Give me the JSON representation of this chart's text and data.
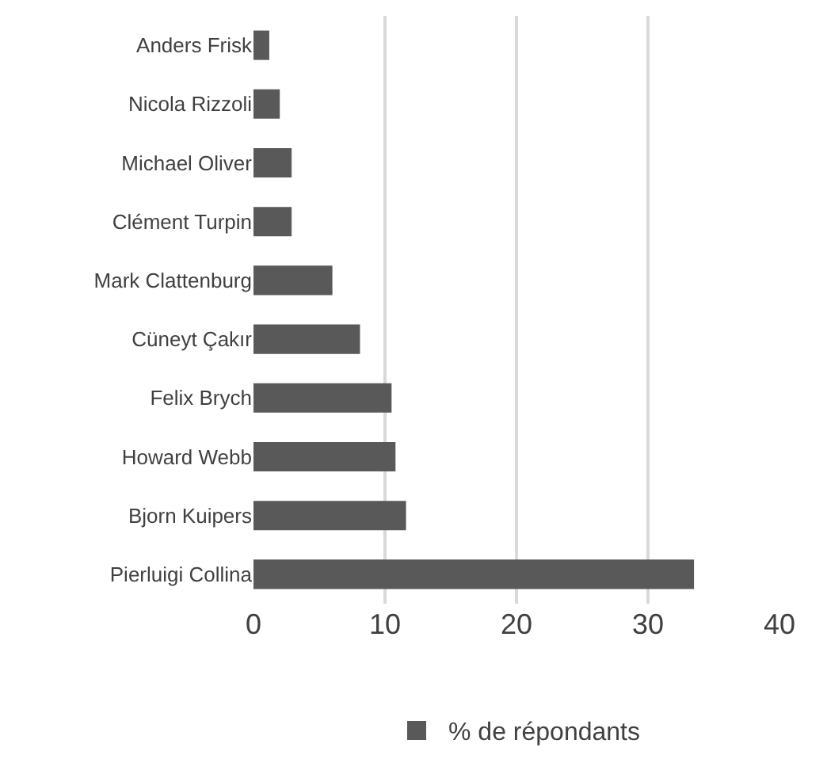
{
  "chart_data": {
    "type": "bar",
    "orientation": "horizontal",
    "categories": [
      "Anders Frisk",
      "Nicola Rizzoli",
      "Michael Oliver",
      "Clément Turpin",
      "Mark Clattenburg",
      "Cüneyt Çakır",
      "Felix Brych",
      "Howard Webb",
      "Bjorn Kuipers",
      "Pierluigi Collina"
    ],
    "series": [
      {
        "name": "% de répondants",
        "color": "#595959",
        "values": [
          1.2,
          2.0,
          2.9,
          2.9,
          6.0,
          8.1,
          10.5,
          10.8,
          11.6,
          33.5
        ]
      }
    ],
    "xlim": [
      0,
      40
    ],
    "xticks": [
      0,
      10,
      20,
      30,
      40
    ],
    "grid": "x",
    "legend": "bottom"
  }
}
